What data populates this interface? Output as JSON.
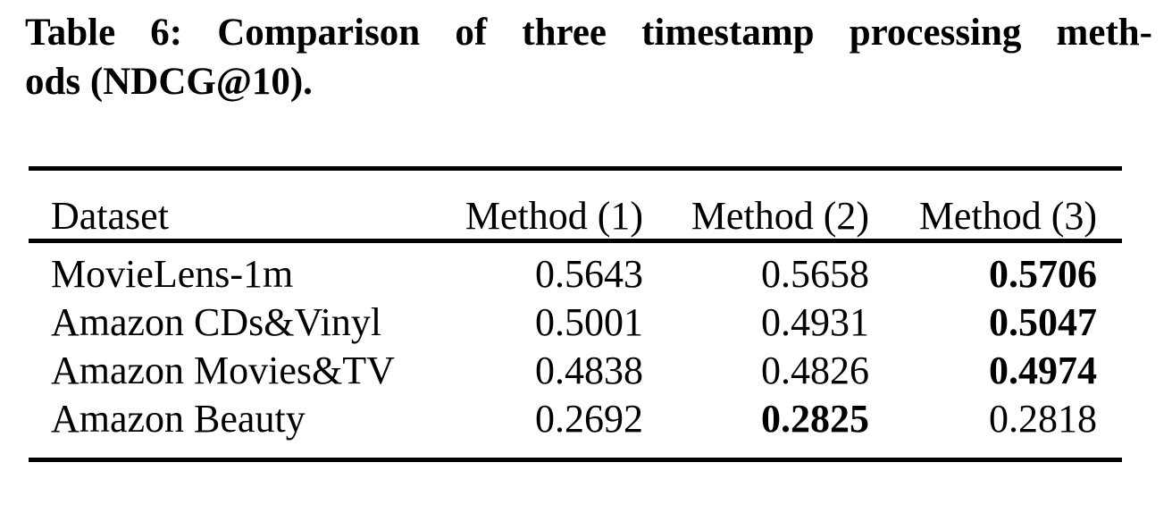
{
  "caption": {
    "line1": "Table 6: Comparison of three timestamp processing meth-",
    "line2": "ods (NDCG@10)."
  },
  "table": {
    "columns": [
      "Dataset",
      "Method (1)",
      "Method (2)",
      "Method (3)"
    ],
    "rows": [
      {
        "cells": [
          "MovieLens-1m",
          "0.5643",
          "0.5658",
          "0.5706"
        ]
      },
      {
        "cells": [
          "Amazon CDs&Vinyl",
          "0.5001",
          "0.4931",
          "0.5047"
        ]
      },
      {
        "cells": [
          "Amazon Movies&TV",
          "0.4838",
          "0.4826",
          "0.4974"
        ]
      },
      {
        "cells": [
          "Amazon Beauty",
          "0.2692",
          "0.2825",
          "0.2818"
        ]
      }
    ],
    "bold_cells": [
      [
        0,
        3
      ],
      [
        1,
        3
      ],
      [
        2,
        3
      ],
      [
        3,
        2
      ]
    ],
    "metric": "NDCG@10"
  },
  "colors": {
    "background": "#ffffff",
    "text": "#000000",
    "rule": "#000000"
  }
}
